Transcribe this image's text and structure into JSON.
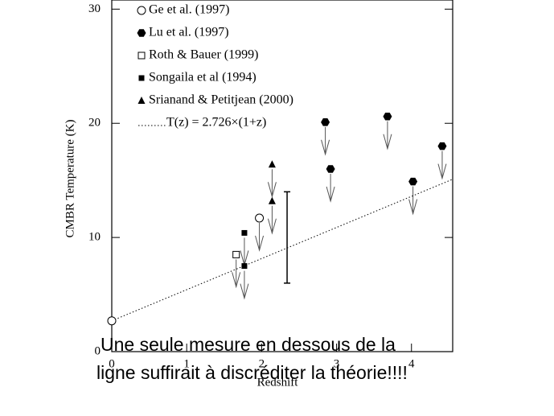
{
  "chart_data": {
    "type": "scatter",
    "xlabel": "Redshift",
    "ylabel": "CMBR Temperature (K)",
    "xlim": [
      0,
      4.55
    ],
    "ylim": [
      0,
      30.8
    ],
    "xticks": [
      0,
      1,
      2,
      3,
      4
    ],
    "yticks": [
      0,
      10,
      20,
      30
    ],
    "upper_limits": true,
    "series": [
      {
        "name": "Ge et al. (1997)",
        "marker": "open-circle",
        "color": "#000000",
        "x": [
          1.97
        ],
        "values": [
          11.7
        ]
      },
      {
        "name": "Lu et al. (1997)",
        "marker": "hexagon",
        "color": "#000000",
        "x": [
          2.85,
          2.92,
          3.68,
          4.02,
          4.41
        ],
        "values": [
          20.1,
          16.0,
          20.6,
          14.9,
          18.0
        ]
      },
      {
        "name": "Roth & Bauer (1999)",
        "marker": "open-square",
        "color": "#000000",
        "x": [
          1.66
        ],
        "values": [
          8.5
        ]
      },
      {
        "name": "Songaila et al (1994)",
        "marker": "square",
        "color": "#000000",
        "x": [
          1.77,
          1.77
        ],
        "values": [
          10.4,
          7.5
        ]
      },
      {
        "name": "Srianand & Petitjean (2000)",
        "marker": "triangle",
        "color": "#000000",
        "x": [
          2.14,
          2.14
        ],
        "values": [
          16.4,
          13.2
        ]
      },
      {
        "name": "T(z) = 2.726×(1+z)",
        "type": "line",
        "style": "dotted",
        "color": "#000000",
        "x": [
          0,
          4.55
        ],
        "values": [
          2.7,
          15.1
        ]
      },
      {
        "marker": "open-circle",
        "color": "#000000",
        "x": [
          0
        ],
        "values": [
          2.7
        ]
      },
      {
        "type": "errorbar",
        "color": "#000000",
        "x": [
          2.34
        ],
        "values": [
          10.0
        ],
        "errors": [
          4.0
        ]
      }
    ],
    "annotations": [
      "Une seule  mesure  en dessous de la",
      "ligne suffirait à discréditer la théorie!!!!"
    ]
  }
}
